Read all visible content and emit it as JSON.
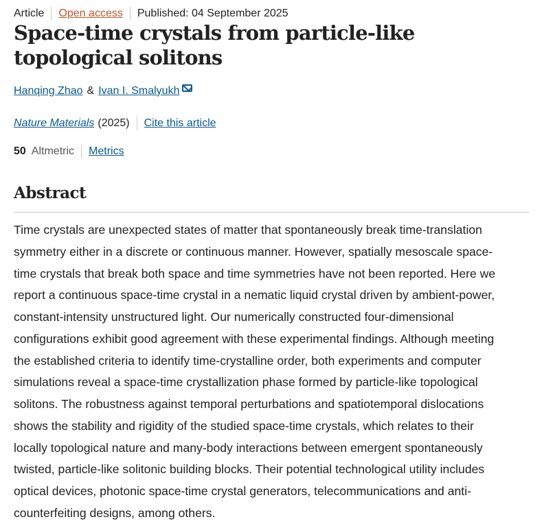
{
  "meta": {
    "type": "Article",
    "access": "Open access",
    "published": "Published: 04 September 2025"
  },
  "title": "Space-time crystals from particle-like topological solitons",
  "authors": {
    "first": "Hanqing Zhao",
    "and": "&",
    "second": "Ivan I. Smalyukh",
    "icon": "mail-icon"
  },
  "journal": {
    "name": "Nature Materials",
    "year": "(2025)",
    "cite": "Cite this article"
  },
  "metrics": {
    "altmetric_score": "50",
    "altmetric_label": "Altmetric",
    "metrics_link": "Metrics"
  },
  "abstract": {
    "heading": "Abstract",
    "lines": [
      "Time crystals are unexpected states of matter that spontaneously break time-translation",
      "symmetry either in a discrete or continuous manner. However, spatially mesoscale space-",
      "time crystals that break both space and time symmetries have not been reported. Here we",
      "report a continuous space-time crystal in a nematic liquid crystal driven by ambient-power,",
      "constant-intensity unstructured light. Our numerically constructed four-dimensional",
      "configurations exhibit good agreement with these experimental findings. Although meeting",
      "the established criteria to identify time-crystalline order, both experiments and computer",
      "simulations reveal a space-time crystallization phase formed by particle-like topological",
      "solitons. The robustness against temporal perturbations and spatiotemporal dislocations",
      "shows the stability and rigidity of the studied space-time crystals, which relates to their",
      "locally topological nature and many-body interactions between emergent spontaneously",
      "twisted, particle-like solitonic building blocks. Their potential technological utility includes",
      "optical devices, photonic space-time crystal generators, telecommunications and anti-",
      "counterfeiting designs, among others."
    ]
  }
}
